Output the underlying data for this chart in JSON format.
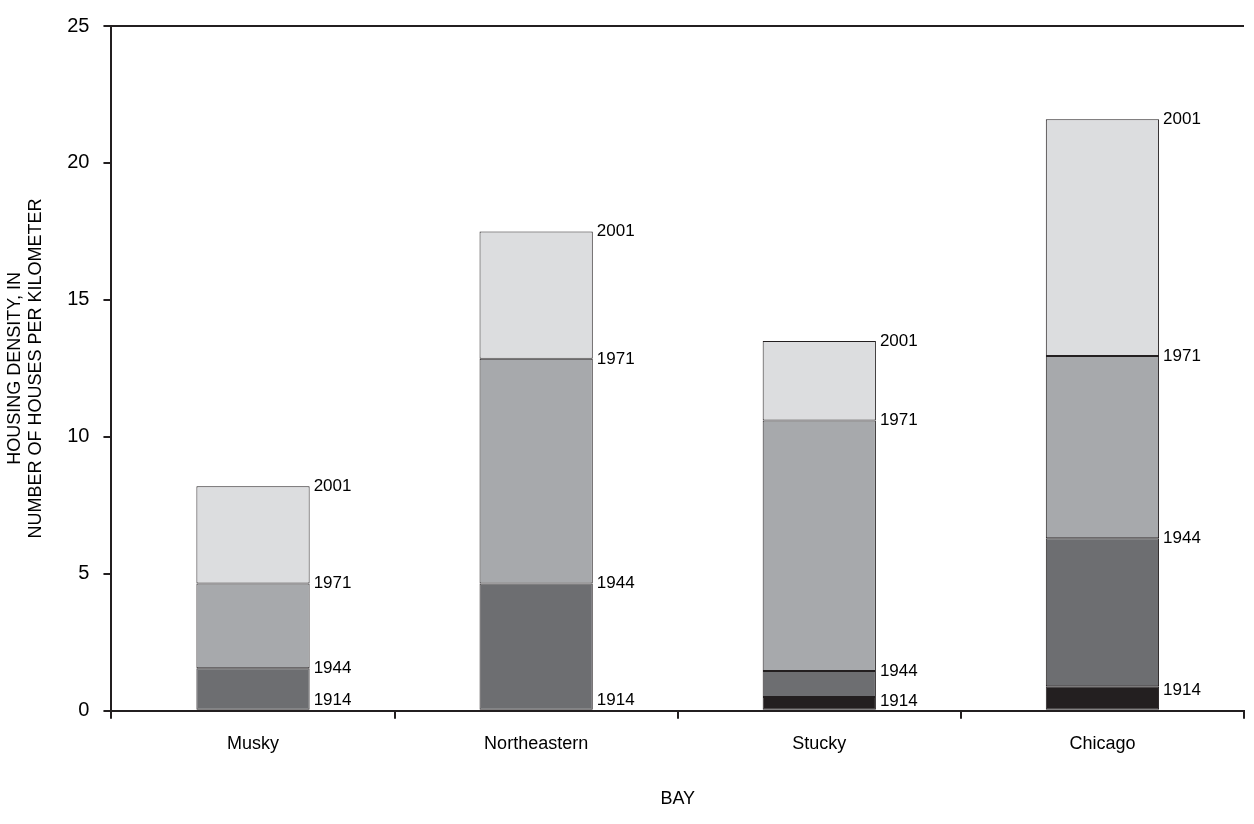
{
  "chart_data": {
    "type": "bar",
    "stacked": true,
    "xlabel": "BAY",
    "ylabel": "HOUSING DENSITY, IN\nNUMBER OF HOUSES PER KILOMETER",
    "categories": [
      "Musky",
      "Northeastern",
      "Stucky",
      "Chicago"
    ],
    "series": [
      {
        "name": "1914",
        "color": "#231f20",
        "values": [
          0,
          0,
          0.5,
          0.9
        ]
      },
      {
        "name": "1944",
        "color": "#6d6e71",
        "values": [
          1.55,
          4.65,
          0.95,
          5.4
        ]
      },
      {
        "name": "1971",
        "color": "#a7a9ac",
        "values": [
          3.1,
          8.2,
          9.15,
          6.65
        ]
      },
      {
        "name": "2001",
        "color": "#dcdddf",
        "values": [
          3.55,
          4.65,
          2.9,
          8.65
        ]
      }
    ],
    "ylim": [
      0,
      25
    ],
    "yticks": [
      0,
      5,
      10,
      15,
      20,
      25
    ],
    "grid": false,
    "legend": false
  }
}
